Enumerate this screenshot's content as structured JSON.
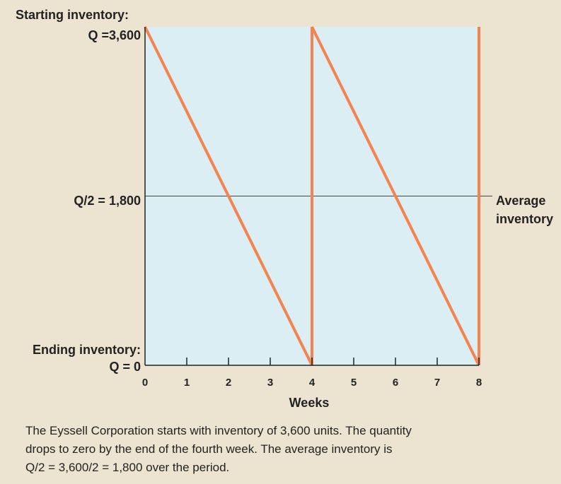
{
  "chart_data": {
    "type": "line",
    "xlabel": "Weeks",
    "x_ticks": [
      "0",
      "1",
      "2",
      "3",
      "4",
      "5",
      "6",
      "7",
      "8"
    ],
    "xlim": [
      0,
      8
    ],
    "ylim": [
      0,
      3600
    ],
    "series": [
      {
        "points": [
          [
            0,
            3600
          ],
          [
            4,
            0
          ],
          [
            4,
            3600
          ],
          [
            8,
            0
          ],
          [
            8,
            3600
          ]
        ],
        "color": "#f4834f"
      }
    ],
    "average_line": {
      "y": 1800,
      "label_line1": "Average",
      "label_line2": "inventory"
    },
    "y_labels": {
      "top_title": "Starting inventory:",
      "top_value": "Q =3,600",
      "mid_value": "Q/2 = 1,800",
      "bottom_title": "Ending inventory:",
      "bottom_value": "Q = 0"
    },
    "plot_background": "#dbeef4",
    "grid": false
  },
  "caption": {
    "line1": "The Eyssell Corporation starts with inventory of 3,600 units. The quantity",
    "line2": "drops to zero by the end of the fourth week. The average inventory is",
    "line3": "Q/2 = 3,600/2 = 1,800 over the period."
  }
}
